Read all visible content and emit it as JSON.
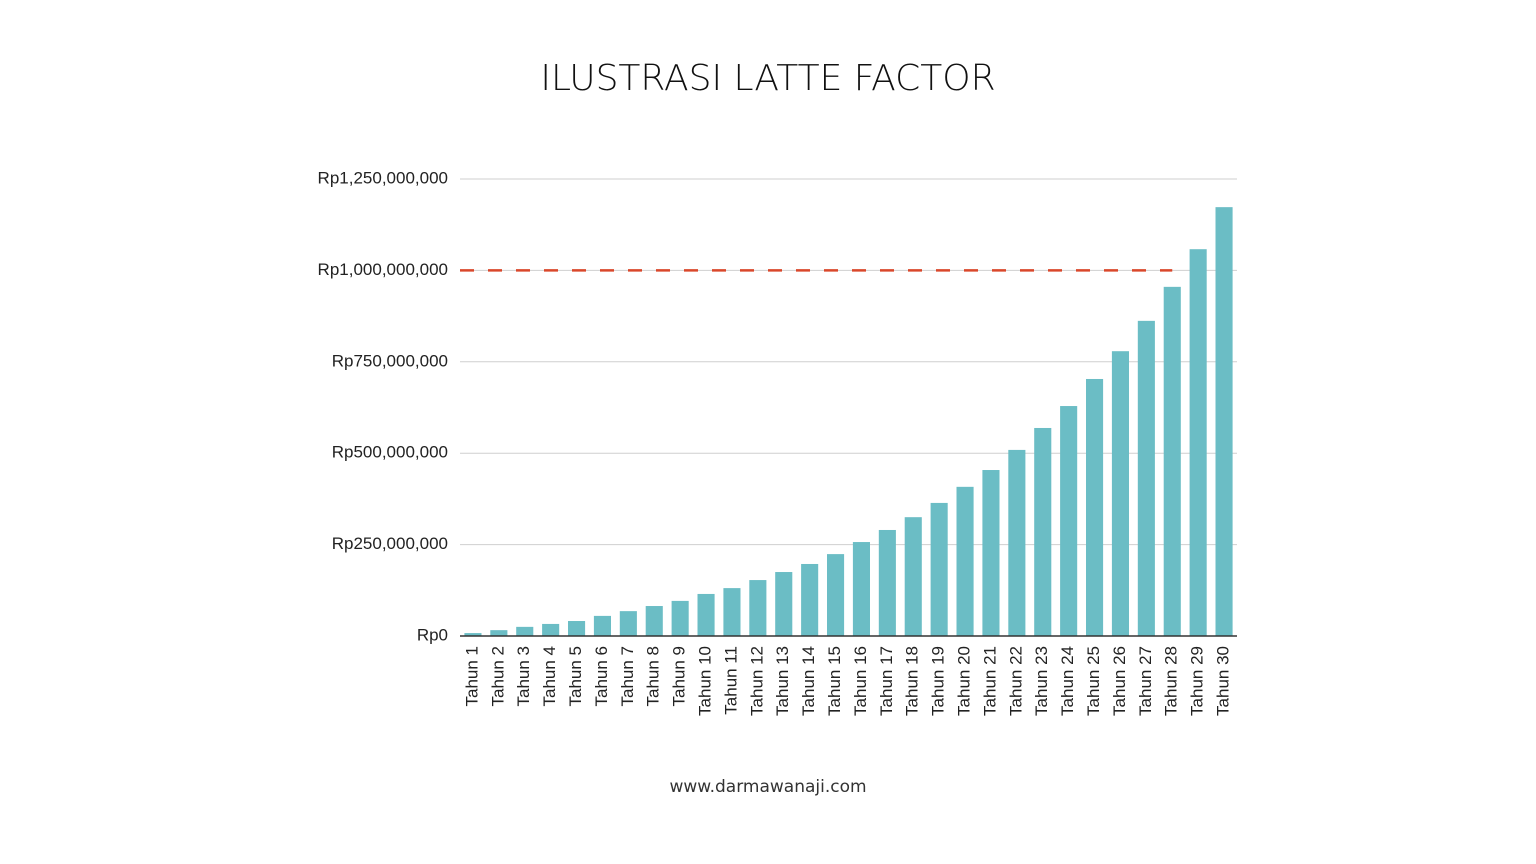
{
  "chart_data": {
    "type": "bar",
    "title": "ILUSTRASI LATTE FACTOR",
    "categories": [
      "Tahun 1",
      "Tahun 2",
      "Tahun 3",
      "Tahun 4",
      "Tahun 5",
      "Tahun 6",
      "Tahun 7",
      "Tahun 8",
      "Tahun 9",
      "Tahun 10",
      "Tahun 11",
      "Tahun 12",
      "Tahun 13",
      "Tahun 14",
      "Tahun 15",
      "Tahun 16",
      "Tahun 17",
      "Tahun 18",
      "Tahun 19",
      "Tahun 20",
      "Tahun 21",
      "Tahun 22",
      "Tahun 23",
      "Tahun 24",
      "Tahun 25",
      "Tahun 26",
      "Tahun 27",
      "Tahun 28",
      "Tahun 29",
      "Tahun 30"
    ],
    "values": [
      8000000,
      16000000,
      25000000,
      33000000,
      41000000,
      55000000,
      68000000,
      82000000,
      96000000,
      115000000,
      131000000,
      153000000,
      175000000,
      197000000,
      224000000,
      257000000,
      290000000,
      325000000,
      364000000,
      408000000,
      454000000,
      509000000,
      569000000,
      629000000,
      703000000,
      779000000,
      862000000,
      955000000,
      1058000000,
      1173000000
    ],
    "color": "#6bbdc5",
    "ylim": [
      0,
      1250000000
    ],
    "yticks": [
      {
        "value": 0,
        "label": "Rp0"
      },
      {
        "value": 250000000,
        "label": "Rp250,000,000"
      },
      {
        "value": 500000000,
        "label": "Rp500,000,000"
      },
      {
        "value": 750000000,
        "label": "Rp750,000,000"
      },
      {
        "value": 1000000000,
        "label": "Rp1,000,000,000"
      },
      {
        "value": 1250000000,
        "label": "Rp1,250,000,000"
      }
    ],
    "grid": true,
    "reference_line": {
      "value": 1000000000,
      "color": "#d9472b"
    },
    "footer": "www.darmawanaji.com"
  }
}
